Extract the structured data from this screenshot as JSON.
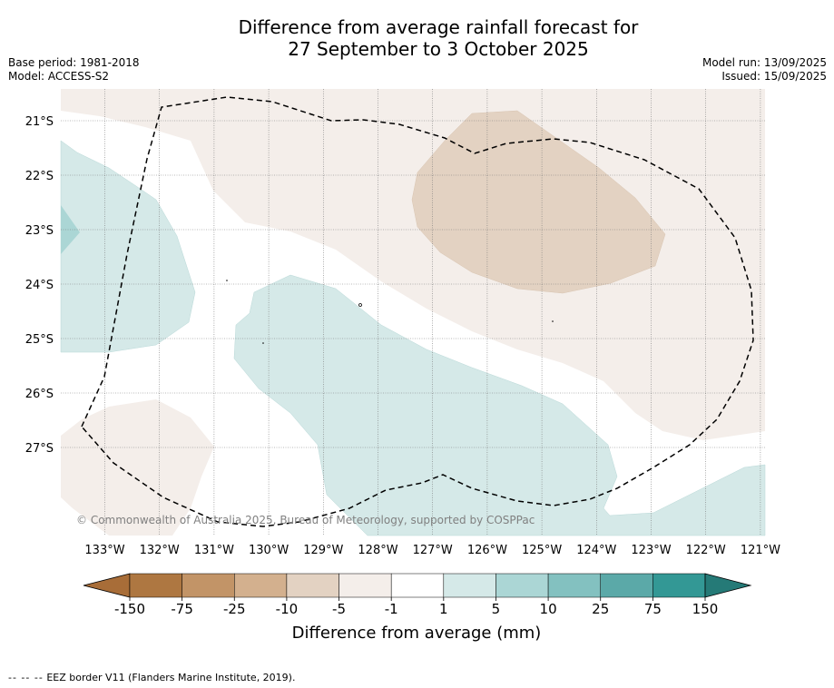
{
  "header": {
    "title_line1": "Difference from average rainfall forecast for",
    "title_line2": "27 September to 3 October 2025",
    "base_period": "Base period: 1981-2018",
    "model": "Model: ACCESS-S2",
    "model_run": "Model run: 13/09/2025",
    "issued": "Issued: 15/09/2025"
  },
  "map": {
    "lat_labels": [
      "21°S",
      "22°S",
      "23°S",
      "24°S",
      "25°S",
      "26°S",
      "27°S"
    ],
    "lon_labels": [
      "133°W",
      "132°W",
      "131°W",
      "130°W",
      "129°W",
      "128°W",
      "127°W",
      "126°W",
      "125°W",
      "124°W",
      "123°W",
      "122°W",
      "121°W"
    ],
    "copyright": "© Commonwealth of Australia 2025, Bureau of Meteorology, supported by COSPPac"
  },
  "colorbar": {
    "tick_labels": [
      "-150",
      "-75",
      "-25",
      "-10",
      "-5",
      "-1",
      "1",
      "5",
      "10",
      "25",
      "75",
      "150"
    ],
    "colors": [
      "#a86d38",
      "#ae7741",
      "#c29467",
      "#d3b08e",
      "#e3d2c2",
      "#f4eeea",
      "#ffffff",
      "#d5e9e8",
      "#abd6d5",
      "#83c1c0",
      "#5ba9a8",
      "#339895",
      "#257a77"
    ],
    "label": "Difference from average (mm)"
  },
  "legend": {
    "dash_symbol": "--  --  --",
    "eez_text": "EEZ border V11 (Flanders Marine Institute, 2019)."
  }
}
